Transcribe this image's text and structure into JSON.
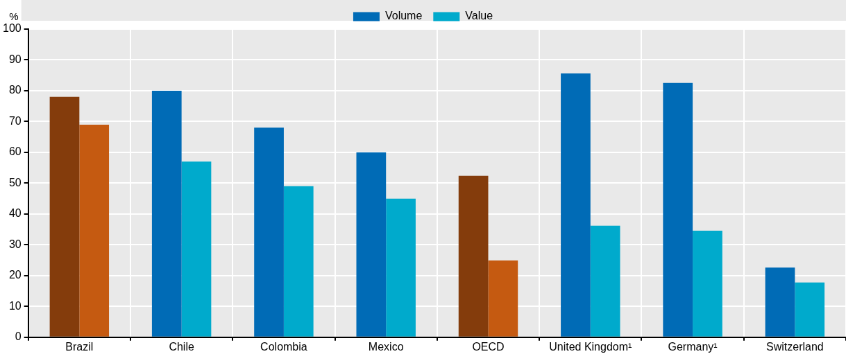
{
  "chart_data": {
    "type": "bar",
    "ylabel": "%",
    "categories": [
      "Brazil",
      "Chile",
      "Colombia",
      "Mexico",
      "OECD",
      "United Kingdom¹",
      "Germany¹",
      "Switzerland"
    ],
    "series": [
      {
        "name": "Volume",
        "color": "#006bb6",
        "colors": [
          "#843c0c",
          "#006bb6",
          "#006bb6",
          "#006bb6",
          "#843c0c",
          "#006bb6",
          "#006bb6",
          "#006bb6"
        ],
        "values": [
          78,
          80,
          68,
          60,
          52.4,
          85.6,
          82.5,
          22.6
        ]
      },
      {
        "name": "Value",
        "color": "#00aacc",
        "colors": [
          "#c55a11",
          "#00aacc",
          "#00aacc",
          "#00aacc",
          "#c55a11",
          "#00aacc",
          "#00aacc",
          "#00aacc"
        ],
        "values": [
          69,
          57,
          49,
          45,
          24.9,
          36.2,
          34.6,
          17.8
        ]
      }
    ],
    "ylim": [
      0,
      100
    ],
    "yticks": [
      0,
      10,
      20,
      30,
      40,
      50,
      60,
      70,
      80,
      90,
      100
    ],
    "grid": true,
    "legend": "top"
  }
}
